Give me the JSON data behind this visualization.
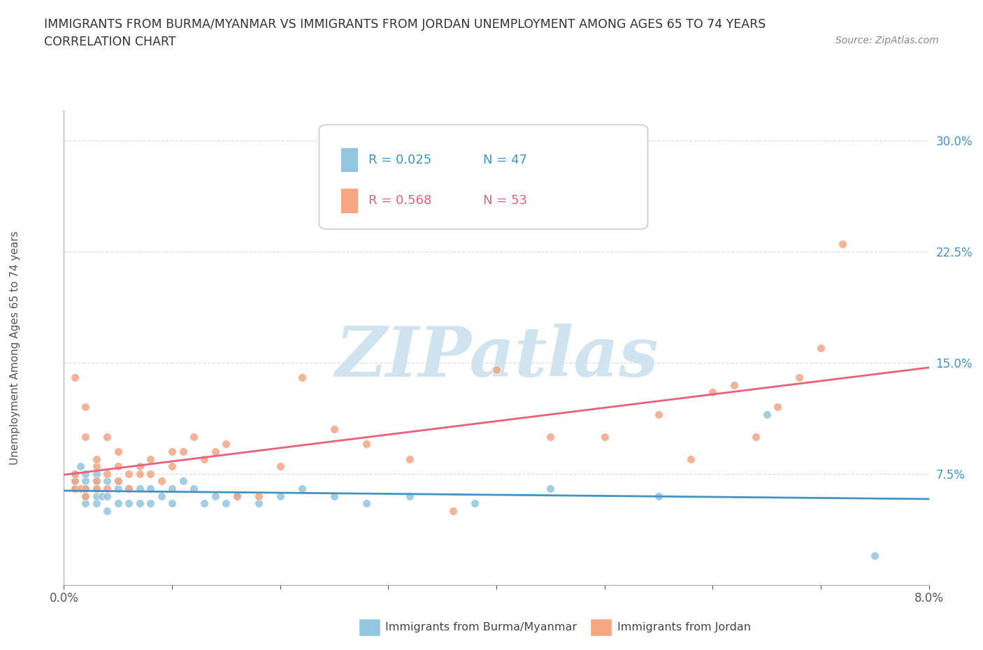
{
  "title_line1": "IMMIGRANTS FROM BURMA/MYANMAR VS IMMIGRANTS FROM JORDAN UNEMPLOYMENT AMONG AGES 65 TO 74 YEARS",
  "title_line2": "CORRELATION CHART",
  "source_text": "Source: ZipAtlas.com",
  "ylabel": "Unemployment Among Ages 65 to 74 years",
  "xlim": [
    0.0,
    0.08
  ],
  "ylim": [
    0.0,
    0.32
  ],
  "xtick_vals": [
    0.0,
    0.01,
    0.02,
    0.03,
    0.04,
    0.05,
    0.06,
    0.07,
    0.08
  ],
  "xtick_labels": [
    "0.0%",
    "",
    "",
    "",
    "",
    "",
    "",
    "",
    "8.0%"
  ],
  "ytick_vals": [
    0.075,
    0.15,
    0.225,
    0.3
  ],
  "ytick_labels": [
    "7.5%",
    "15.0%",
    "22.5%",
    "30.0%"
  ],
  "legend_r1": "R = 0.025",
  "legend_n1": "N = 47",
  "legend_r2": "R = 0.568",
  "legend_n2": "N = 53",
  "color_burma": "#92c5de",
  "color_jordan": "#f4a582",
  "color_burma_dark": "#4393c3",
  "color_jordan_dark": "#e8607a",
  "color_r1_text": "#4393c3",
  "color_r2_text": "#e8607a",
  "watermark_color": "#d0e4f0",
  "background_color": "#ffffff",
  "grid_color": "#dddddd",
  "axis_color": "#aaaaaa",
  "title_color": "#333333",
  "burma_x": [
    0.001,
    0.001,
    0.001,
    0.0015,
    0.002,
    0.002,
    0.002,
    0.002,
    0.002,
    0.003,
    0.003,
    0.003,
    0.003,
    0.003,
    0.0035,
    0.004,
    0.004,
    0.004,
    0.005,
    0.005,
    0.005,
    0.006,
    0.006,
    0.007,
    0.007,
    0.008,
    0.008,
    0.009,
    0.01,
    0.01,
    0.011,
    0.012,
    0.013,
    0.014,
    0.015,
    0.016,
    0.018,
    0.02,
    0.022,
    0.025,
    0.028,
    0.032,
    0.038,
    0.045,
    0.055,
    0.065,
    0.075
  ],
  "burma_y": [
    0.065,
    0.07,
    0.075,
    0.08,
    0.055,
    0.06,
    0.065,
    0.07,
    0.075,
    0.055,
    0.06,
    0.065,
    0.07,
    0.075,
    0.06,
    0.05,
    0.06,
    0.07,
    0.055,
    0.065,
    0.07,
    0.055,
    0.065,
    0.055,
    0.065,
    0.055,
    0.065,
    0.06,
    0.055,
    0.065,
    0.07,
    0.065,
    0.055,
    0.06,
    0.055,
    0.06,
    0.055,
    0.06,
    0.065,
    0.06,
    0.055,
    0.06,
    0.055,
    0.065,
    0.06,
    0.115,
    0.02
  ],
  "jordan_x": [
    0.001,
    0.001,
    0.001,
    0.001,
    0.0015,
    0.002,
    0.002,
    0.002,
    0.002,
    0.003,
    0.003,
    0.003,
    0.003,
    0.004,
    0.004,
    0.004,
    0.005,
    0.005,
    0.005,
    0.006,
    0.006,
    0.007,
    0.007,
    0.008,
    0.008,
    0.009,
    0.01,
    0.01,
    0.011,
    0.012,
    0.013,
    0.014,
    0.015,
    0.016,
    0.018,
    0.02,
    0.022,
    0.025,
    0.028,
    0.032,
    0.036,
    0.04,
    0.045,
    0.05,
    0.055,
    0.058,
    0.06,
    0.062,
    0.064,
    0.066,
    0.068,
    0.07,
    0.072
  ],
  "jordan_y": [
    0.065,
    0.07,
    0.075,
    0.14,
    0.065,
    0.06,
    0.065,
    0.1,
    0.12,
    0.065,
    0.07,
    0.08,
    0.085,
    0.065,
    0.075,
    0.1,
    0.07,
    0.08,
    0.09,
    0.065,
    0.075,
    0.075,
    0.08,
    0.075,
    0.085,
    0.07,
    0.08,
    0.09,
    0.09,
    0.1,
    0.085,
    0.09,
    0.095,
    0.06,
    0.06,
    0.08,
    0.14,
    0.105,
    0.095,
    0.085,
    0.05,
    0.145,
    0.1,
    0.1,
    0.115,
    0.085,
    0.13,
    0.135,
    0.1,
    0.12,
    0.14,
    0.16,
    0.23
  ]
}
